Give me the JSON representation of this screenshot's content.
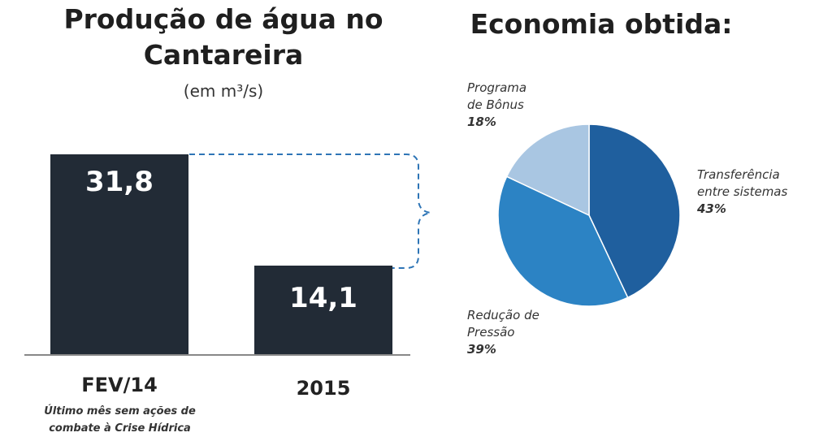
{
  "left_chart": {
    "title_line1": "Produção de água no",
    "title_line2": "Cantareira",
    "subtitle": "(em m³/s)",
    "note_line1": "Último mês sem ações de",
    "note_line2": "combate à Crise Hídrica"
  },
  "right_chart": {
    "title": "Economia obtida:"
  },
  "colors": {
    "bar": "#222b36",
    "axis": "#888888",
    "bracket": "#2e75b6",
    "slice_transfer": "#1f5f9e",
    "slice_pressure": "#2c83c4",
    "slice_bonus": "#a9c6e2"
  },
  "chart_data": [
    {
      "type": "bar",
      "title": "Produção de água no Cantareira",
      "subtitle": "(em m³/s)",
      "categories": [
        "FEV/14",
        "2015"
      ],
      "values": [
        31.8,
        14.1
      ],
      "value_labels": [
        "31,8",
        "14,1"
      ],
      "ylim": [
        0,
        36
      ]
    },
    {
      "type": "pie",
      "title": "Economia obtida:",
      "slices": [
        {
          "label_line1": "Transferência",
          "label_line2": "entre sistemas",
          "value": 43,
          "pct_label": "43%"
        },
        {
          "label_line1": "Redução de",
          "label_line2": "Pressão",
          "value": 39,
          "pct_label": "39%"
        },
        {
          "label_line1": "Programa",
          "label_line2": "de Bônus",
          "value": 18,
          "pct_label": "18%"
        }
      ]
    }
  ]
}
